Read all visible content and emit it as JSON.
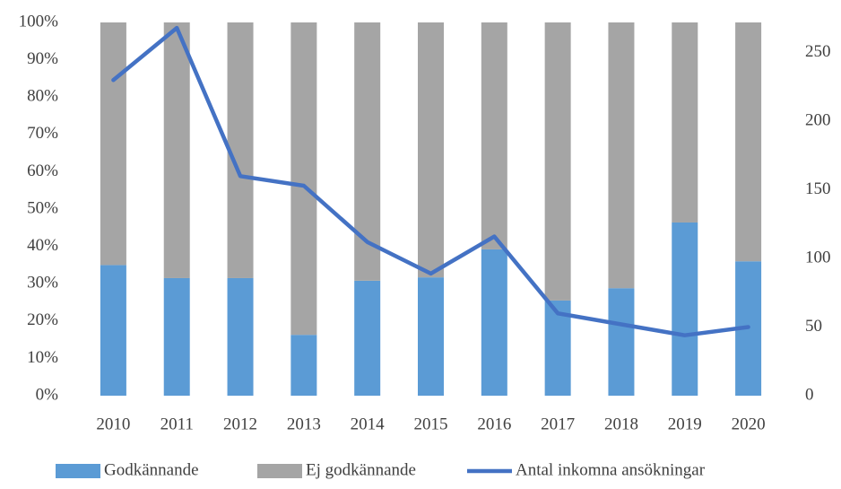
{
  "chart_data": {
    "type": "bar",
    "stacked": true,
    "categories": [
      "2010",
      "2011",
      "2012",
      "2013",
      "2014",
      "2015",
      "2016",
      "2017",
      "2018",
      "2019",
      "2020"
    ],
    "series": [
      {
        "name": "Godkännande",
        "color": "#5b9bd5",
        "values": [
          35,
          31.5,
          31.5,
          16.3,
          30.8,
          31.7,
          39.2,
          25.5,
          28.8,
          46.4,
          36
        ]
      },
      {
        "name": "Ej godkännande",
        "color": "#a5a5a5",
        "values": [
          65,
          68.5,
          68.5,
          83.7,
          69.2,
          68.3,
          60.8,
          74.5,
          71.2,
          53.6,
          64
        ]
      },
      {
        "name": "Antal inkomna ansökningar",
        "color": "#4472c4",
        "type": "line",
        "axis": "y2",
        "values": [
          230,
          268,
          160,
          153,
          112,
          89,
          116,
          60,
          52,
          44,
          50
        ]
      }
    ],
    "ylim": [
      0,
      100
    ],
    "yticks": [
      {
        "value": 0,
        "label": "0%"
      },
      {
        "value": 10,
        "label": "10%"
      },
      {
        "value": 20,
        "label": "20%"
      },
      {
        "value": 30,
        "label": "30%"
      },
      {
        "value": 40,
        "label": "40%"
      },
      {
        "value": 50,
        "label": "50%"
      },
      {
        "value": 60,
        "label": "60%"
      },
      {
        "value": 70,
        "label": "70%"
      },
      {
        "value": 80,
        "label": "80%"
      },
      {
        "value": 90,
        "label": "90%"
      },
      {
        "value": 100,
        "label": "100%"
      }
    ],
    "y2lim": [
      0,
      272
    ],
    "y2ticks": [
      0,
      50,
      100,
      150,
      200,
      250
    ],
    "legend": "bottom"
  }
}
